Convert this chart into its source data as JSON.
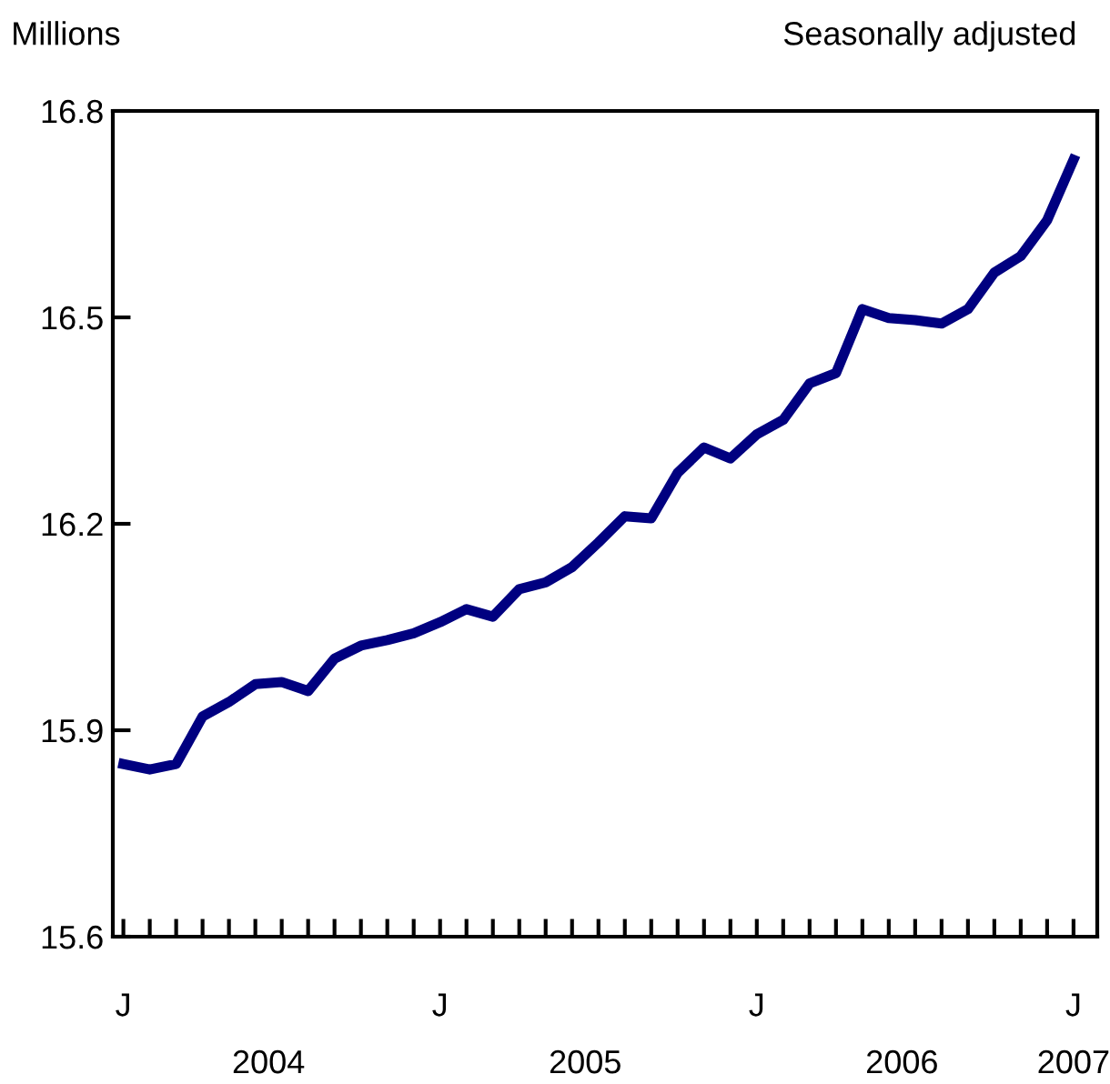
{
  "chart_data": {
    "type": "line",
    "ylabel": "Millions",
    "subtitle": "Seasonally adjusted",
    "categories": [
      "J",
      null,
      null,
      null,
      null,
      null,
      null,
      null,
      null,
      null,
      null,
      null,
      "J",
      null,
      null,
      null,
      null,
      null,
      null,
      null,
      null,
      null,
      null,
      null,
      "J",
      null,
      null,
      null,
      null,
      null,
      null,
      null,
      null,
      null,
      null,
      null,
      "J"
    ],
    "series": [
      {
        "color": "#000080",
        "values": [
          15.851,
          15.843,
          15.851,
          15.92,
          15.941,
          15.967,
          15.97,
          15.957,
          16.004,
          16.023,
          16.031,
          16.041,
          16.057,
          16.076,
          16.065,
          16.105,
          16.115,
          16.137,
          16.173,
          16.211,
          16.208,
          16.274,
          16.311,
          16.295,
          16.33,
          16.351,
          16.404,
          16.419,
          16.512,
          16.499,
          16.496,
          16.491,
          16.512,
          16.565,
          16.589,
          16.641,
          16.729
        ]
      }
    ],
    "ylim": [
      15.6,
      16.8
    ],
    "yticks": [
      15.6,
      15.9,
      16.2,
      16.5,
      16.8
    ],
    "annotations": [
      "2004",
      "2005",
      "2006",
      "2007"
    ],
    "grid": false,
    "legend": false,
    "marker": "none",
    "line_style": "solid"
  }
}
